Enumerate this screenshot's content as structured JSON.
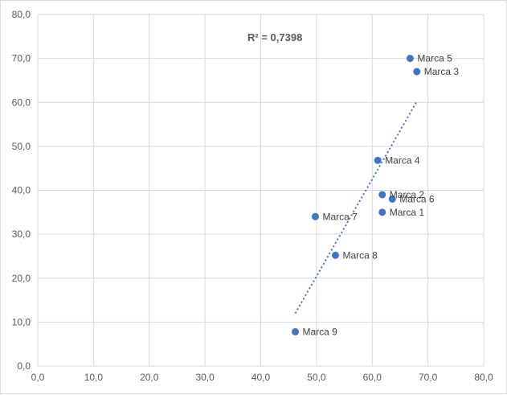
{
  "chart_data": {
    "type": "scatter",
    "title": "",
    "xlabel": "",
    "ylabel": "",
    "xlim": [
      0,
      80
    ],
    "ylim": [
      0,
      80
    ],
    "x_ticks": [
      "0,0",
      "10,0",
      "20,0",
      "30,0",
      "40,0",
      "50,0",
      "60,0",
      "70,0",
      "80,0"
    ],
    "y_ticks": [
      "0,0",
      "10,0",
      "20,0",
      "30,0",
      "40,0",
      "50,0",
      "60,0",
      "70,0",
      "80,0"
    ],
    "grid": true,
    "point_color": "#4472c4",
    "trendline_color": "#4472c4",
    "points": [
      {
        "label": "Marca 1",
        "x": 61.8,
        "y": 35.0
      },
      {
        "label": "Marca 2",
        "x": 61.8,
        "y": 39.0
      },
      {
        "label": "Marca 3",
        "x": 68.0,
        "y": 67.0
      },
      {
        "label": "Marca 4",
        "x": 61.0,
        "y": 46.8
      },
      {
        "label": "Marca 5",
        "x": 66.8,
        "y": 70.0
      },
      {
        "label": "Marca 6",
        "x": 63.6,
        "y": 38.0
      },
      {
        "label": "Marca 7",
        "x": 49.8,
        "y": 34.0
      },
      {
        "label": "Marca 8",
        "x": 53.4,
        "y": 25.2
      },
      {
        "label": "Marca 9",
        "x": 46.2,
        "y": 7.8
      }
    ],
    "trendline": {
      "type": "linear",
      "x": [
        46.2,
        68.0
      ],
      "y": [
        12.0,
        60.2
      ]
    },
    "annotation": "R² = 0,7398"
  }
}
